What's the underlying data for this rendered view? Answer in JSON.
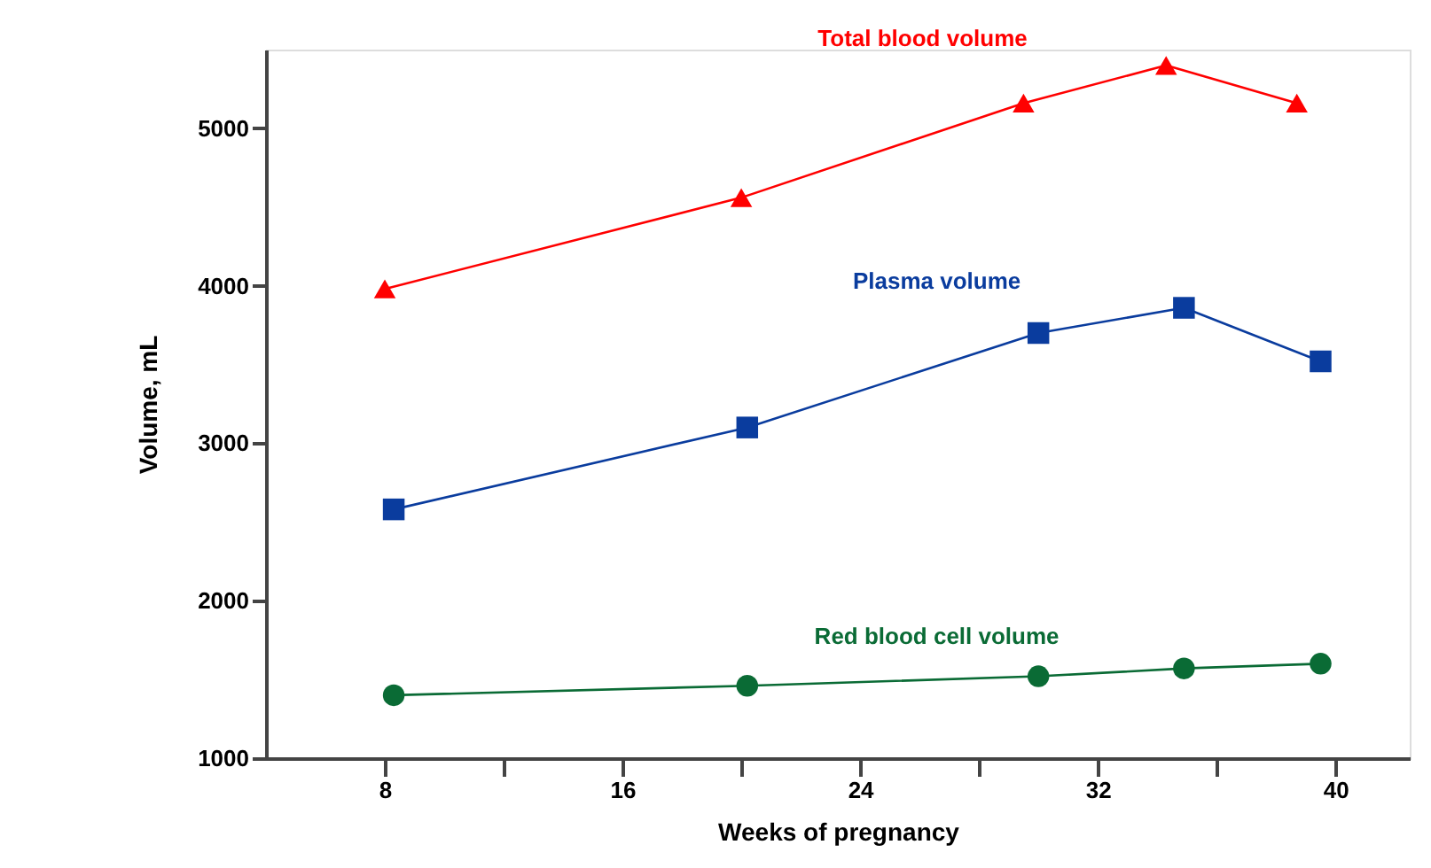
{
  "chart_data": {
    "type": "line",
    "xlabel": "Weeks of pregnancy",
    "ylabel": "Volume, mL",
    "xlim": [
      4,
      42.5
    ],
    "ylim": [
      1000,
      5500
    ],
    "xticks": [
      8,
      {
        "value": 12,
        "label": null
      },
      16,
      {
        "value": 20,
        "label": null
      },
      24,
      {
        "value": 28,
        "label": null
      },
      32,
      {
        "value": 36,
        "label": null
      },
      40
    ],
    "yticks": [
      1000,
      2000,
      3000,
      4000,
      5000
    ],
    "grid": false,
    "series": [
      {
        "name": "Total blood volume",
        "color": "#ff0000",
        "marker": "triangle",
        "x": [
          8,
          20,
          29.5,
          34.3,
          38.7
        ],
        "values": [
          3980,
          4560,
          5160,
          5400,
          5160
        ]
      },
      {
        "name": "Plasma volume",
        "color": "#0a3c9e",
        "marker": "square",
        "x": [
          8.3,
          20.2,
          30,
          34.9,
          39.5
        ],
        "values": [
          2580,
          3100,
          3700,
          3860,
          3520
        ]
      },
      {
        "name": "Red blood cell volume",
        "color": "#0a6b35",
        "marker": "circle",
        "x": [
          8.3,
          20.2,
          30,
          34.9,
          39.5
        ],
        "values": [
          1400,
          1460,
          1520,
          1570,
          1600
        ]
      }
    ]
  }
}
